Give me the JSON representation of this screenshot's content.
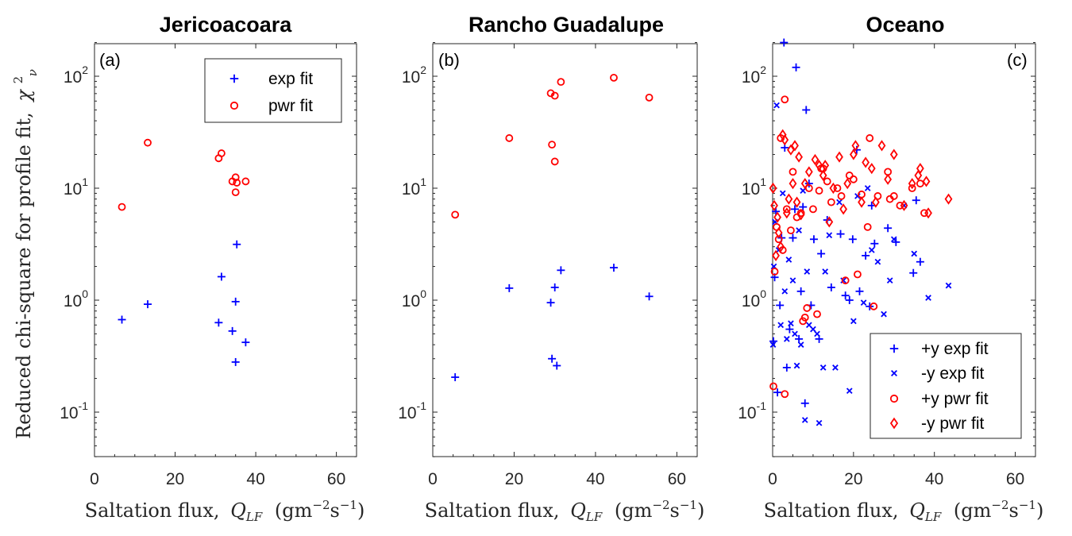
{
  "figure": {
    "ylabel": "Reduced chi-square for profile fit,",
    "ylabel_symbol": "χ",
    "ylabel_sup": "2",
    "ylabel_sub": "ν",
    "xlabel_text": "Saltation flux,",
    "xlabel_symbol": "Q",
    "xlabel_sub": "LF",
    "xlabel_units_open": "(gm",
    "xlabel_units_sup1": "−2",
    "xlabel_units_mid": "s",
    "xlabel_units_sup2": "−1",
    "xlabel_units_close": ")"
  },
  "colors": {
    "blue": "#0000ff",
    "red": "#ff0000",
    "axis": "#262626"
  },
  "chart_data": [
    {
      "type": "scatter",
      "title": "Jericoacoara",
      "panel_label": "(a)",
      "xscale": "linear",
      "yscale": "log",
      "xlim": [
        0,
        65
      ],
      "ylim": [
        0.04,
        200
      ],
      "xticks": [
        0,
        20,
        40,
        60
      ],
      "legend_placement": "top-right",
      "series": [
        {
          "name": "exp fit",
          "marker": "plus",
          "color": "#0000ff",
          "points": [
            [
              6.8,
              0.67
            ],
            [
              13.2,
              0.92
            ],
            [
              30.8,
              0.63
            ],
            [
              31.5,
              1.62
            ],
            [
              34.2,
              0.53
            ],
            [
              35.0,
              0.28
            ],
            [
              35.0,
              0.97
            ],
            [
              35.3,
              3.15
            ],
            [
              37.5,
              0.42
            ]
          ]
        },
        {
          "name": "pwr fit",
          "marker": "circle",
          "color": "#ff0000",
          "points": [
            [
              6.8,
              6.8
            ],
            [
              13.2,
              25.5
            ],
            [
              30.8,
              18.5
            ],
            [
              31.5,
              20.5
            ],
            [
              34.2,
              11.5
            ],
            [
              35.0,
              12.5
            ],
            [
              35.0,
              9.2
            ],
            [
              35.3,
              11.2
            ],
            [
              37.5,
              11.5
            ]
          ]
        }
      ]
    },
    {
      "type": "scatter",
      "title": "Rancho Guadalupe",
      "panel_label": "(b)",
      "xscale": "linear",
      "yscale": "log",
      "xlim": [
        0,
        65
      ],
      "ylim": [
        0.04,
        200
      ],
      "xticks": [
        0,
        20,
        40,
        60
      ],
      "series": [
        {
          "name": "exp fit",
          "marker": "plus",
          "color": "#0000ff",
          "points": [
            [
              5.5,
              0.205
            ],
            [
              18.8,
              1.28
            ],
            [
              29.0,
              0.95
            ],
            [
              29.3,
              0.3
            ],
            [
              30.0,
              1.3
            ],
            [
              30.5,
              0.26
            ],
            [
              31.5,
              1.85
            ],
            [
              44.5,
              1.95
            ],
            [
              53.2,
              1.08
            ]
          ]
        },
        {
          "name": "pwr fit",
          "marker": "circle",
          "color": "#ff0000",
          "points": [
            [
              5.5,
              5.8
            ],
            [
              18.8,
              28.0
            ],
            [
              29.0,
              70.5
            ],
            [
              29.3,
              24.5
            ],
            [
              30.0,
              17.3
            ],
            [
              30.0,
              67.0
            ],
            [
              31.5,
              89.0
            ],
            [
              44.5,
              97.0
            ],
            [
              53.2,
              64.5
            ]
          ]
        }
      ]
    },
    {
      "type": "scatter",
      "title": "Oceano",
      "panel_label": "(c)",
      "xscale": "linear",
      "yscale": "log",
      "xlim": [
        0,
        65
      ],
      "ylim": [
        0.04,
        200
      ],
      "xticks": [
        0,
        20,
        40,
        60
      ],
      "legend_placement": "bottom-right",
      "series": [
        {
          "name": "+y exp fit",
          "marker": "plus",
          "color": "#0000ff",
          "points": [
            [
              0.2,
              0.43
            ],
            [
              0.5,
              1.6
            ],
            [
              0.8,
              6.2
            ],
            [
              1.2,
              0.15
            ],
            [
              1.8,
              0.9
            ],
            [
              2.2,
              3.6
            ],
            [
              2.8,
              200
            ],
            [
              3.0,
              23
            ],
            [
              3.5,
              0.25
            ],
            [
              4.2,
              0.55
            ],
            [
              5.0,
              3.6
            ],
            [
              5.5,
              6.5
            ],
            [
              5.8,
              120
            ],
            [
              6.5,
              0.45
            ],
            [
              7.0,
              1.2
            ],
            [
              7.5,
              6.8
            ],
            [
              8.0,
              0.12
            ],
            [
              8.3,
              50
            ],
            [
              9.0,
              11
            ],
            [
              9.5,
              0.9
            ],
            [
              10.2,
              3.5
            ],
            [
              11.5,
              0.45
            ],
            [
              12.0,
              2.6
            ],
            [
              13.5,
              5.2
            ],
            [
              14.5,
              1.3
            ],
            [
              16.8,
              3.9
            ],
            [
              18.0,
              1.1
            ],
            [
              19.0,
              1.0
            ],
            [
              19.8,
              3.5
            ],
            [
              20.8,
              22
            ],
            [
              21.5,
              1.2
            ],
            [
              23.0,
              2.5
            ],
            [
              24.0,
              0.88
            ],
            [
              24.5,
              7.0
            ],
            [
              25.2,
              3.2
            ],
            [
              28.5,
              4.4
            ],
            [
              30.5,
              3.3
            ],
            [
              34.8,
              1.75
            ],
            [
              35.5,
              7.8
            ],
            [
              36.5,
              2.2
            ]
          ]
        },
        {
          "name": "-y exp fit",
          "marker": "x",
          "color": "#0000ff",
          "points": [
            [
              0.1,
              0.4
            ],
            [
              0.3,
              2.0
            ],
            [
              0.6,
              5.0
            ],
            [
              1.0,
              55
            ],
            [
              1.5,
              2.8
            ],
            [
              2.0,
              0.6
            ],
            [
              2.5,
              9
            ],
            [
              3.0,
              1.2
            ],
            [
              3.5,
              0.45
            ],
            [
              4.0,
              2.3
            ],
            [
              4.5,
              0.62
            ],
            [
              5.0,
              1.5
            ],
            [
              5.5,
              0.5
            ],
            [
              6.0,
              0.26
            ],
            [
              6.5,
              4.2
            ],
            [
              7.0,
              0.4
            ],
            [
              7.5,
              9.5
            ],
            [
              8.0,
              0.085
            ],
            [
              8.5,
              1.8
            ],
            [
              9.0,
              0.6
            ],
            [
              10.0,
              0.55
            ],
            [
              11.0,
              0.5
            ],
            [
              11.5,
              0.08
            ],
            [
              12.5,
              0.25
            ],
            [
              13.0,
              1.8
            ],
            [
              14.0,
              3.8
            ],
            [
              15.5,
              0.25
            ],
            [
              16.5,
              7.5
            ],
            [
              17.5,
              1.5
            ],
            [
              19.0,
              0.155
            ],
            [
              20.0,
              0.65
            ],
            [
              21.0,
              8.5
            ],
            [
              22.5,
              0.95
            ],
            [
              23.5,
              10
            ],
            [
              24.5,
              2.8
            ],
            [
              26.0,
              2.2
            ],
            [
              27.5,
              0.75
            ],
            [
              29.0,
              1.5
            ],
            [
              30.0,
              3.5
            ],
            [
              32.5,
              7.0
            ],
            [
              35.0,
              2.6
            ],
            [
              38.5,
              1.05
            ],
            [
              43.5,
              1.35
            ]
          ]
        },
        {
          "name": "+y pwr fit",
          "marker": "circle",
          "color": "#ff0000",
          "points": [
            [
              0.2,
              0.17
            ],
            [
              0.5,
              1.8
            ],
            [
              1.0,
              4.5
            ],
            [
              1.5,
              3.5
            ],
            [
              2.0,
              28
            ],
            [
              2.5,
              2.8
            ],
            [
              3.0,
              0.145
            ],
            [
              3.0,
              62
            ],
            [
              3.5,
              6.5
            ],
            [
              4.5,
              4.2
            ],
            [
              5.0,
              14
            ],
            [
              6.0,
              5.5
            ],
            [
              7.0,
              6.0
            ],
            [
              7.5,
              0.65
            ],
            [
              8.0,
              0.7
            ],
            [
              8.5,
              0.85
            ],
            [
              9.0,
              10
            ],
            [
              10.0,
              6.5
            ],
            [
              11.0,
              0.75
            ],
            [
              11.5,
              9.5
            ],
            [
              12.0,
              15
            ],
            [
              12.5,
              15
            ],
            [
              13.5,
              11.5
            ],
            [
              14.5,
              7.5
            ],
            [
              16.0,
              10
            ],
            [
              17.0,
              8.5
            ],
            [
              18.0,
              1.5
            ],
            [
              19.0,
              13
            ],
            [
              20.0,
              12
            ],
            [
              21.0,
              1.7
            ],
            [
              22.0,
              8.8
            ],
            [
              23.5,
              4.5
            ],
            [
              24.0,
              28
            ],
            [
              25.0,
              0.88
            ],
            [
              26.0,
              8.5
            ],
            [
              28.5,
              14
            ],
            [
              29.0,
              8.0
            ],
            [
              30.0,
              8.5
            ],
            [
              31.5,
              7.0
            ],
            [
              34.5,
              10
            ],
            [
              36.5,
              11
            ],
            [
              37.5,
              6.0
            ]
          ]
        },
        {
          "name": "-y pwr fit",
          "marker": "diamond",
          "color": "#ff0000",
          "points": [
            [
              0.1,
              10
            ],
            [
              0.4,
              7
            ],
            [
              0.8,
              2.5
            ],
            [
              1.2,
              5.5
            ],
            [
              1.5,
              4.0
            ],
            [
              2.0,
              3.0
            ],
            [
              2.5,
              30
            ],
            [
              3.0,
              27
            ],
            [
              3.5,
              6.0
            ],
            [
              4.0,
              8.0
            ],
            [
              4.5,
              22
            ],
            [
              5.0,
              11
            ],
            [
              5.5,
              24
            ],
            [
              6.0,
              7.5
            ],
            [
              6.5,
              19
            ],
            [
              7.0,
              5.8
            ],
            [
              8.0,
              11
            ],
            [
              9.0,
              14
            ],
            [
              10.5,
              18
            ],
            [
              11.5,
              16
            ],
            [
              12.5,
              13
            ],
            [
              13.0,
              16
            ],
            [
              14.0,
              5.0
            ],
            [
              15.0,
              10
            ],
            [
              16.5,
              19
            ],
            [
              17.5,
              6.5
            ],
            [
              18.5,
              11
            ],
            [
              20.0,
              20
            ],
            [
              20.5,
              24
            ],
            [
              22.0,
              7.5
            ],
            [
              23.0,
              17
            ],
            [
              24.5,
              15
            ],
            [
              25.5,
              7.5
            ],
            [
              27.0,
              24
            ],
            [
              28.5,
              12
            ],
            [
              30.0,
              20
            ],
            [
              32.5,
              7.0
            ],
            [
              34.5,
              11
            ],
            [
              36.0,
              13
            ],
            [
              36.5,
              15
            ],
            [
              38.0,
              11.5
            ],
            [
              38.5,
              6.0
            ],
            [
              43.5,
              8.0
            ]
          ]
        }
      ]
    }
  ]
}
